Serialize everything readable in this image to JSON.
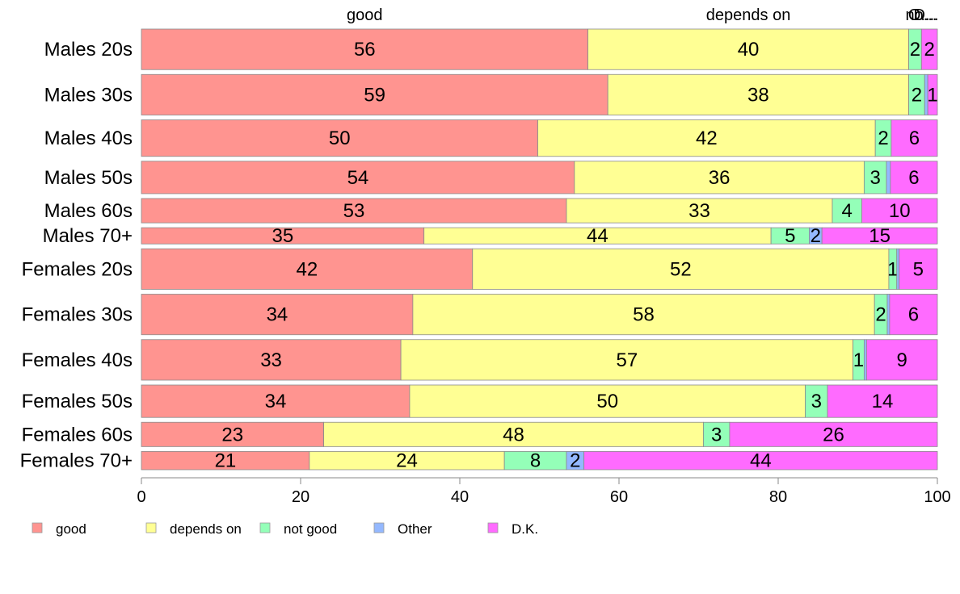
{
  "chart_data": {
    "type": "bar",
    "orientation": "horizontal",
    "stacked": true,
    "title": "",
    "xlabel": "",
    "ylabel": "",
    "xlim": [
      0,
      100
    ],
    "xticks": [
      0,
      20,
      40,
      60,
      80,
      100
    ],
    "grid": false,
    "legend_position": "bottom-left",
    "top_category_labels": [
      "good",
      "depends on",
      "no...",
      "O...",
      "D..."
    ],
    "series": [
      {
        "name": "good",
        "color": "#FF9490"
      },
      {
        "name": "depends on",
        "color": "#FFFF94"
      },
      {
        "name": "not good",
        "color": "#94FFB8"
      },
      {
        "name": "Other",
        "color": "#94B8FF"
      },
      {
        "name": "D.K.",
        "color": "#FF6BFF"
      }
    ],
    "rows": [
      {
        "label": "Males 20s",
        "values": [
          56.1,
          40.3,
          1.6,
          0.0,
          2.0
        ],
        "labels": [
          "56",
          "40",
          "2",
          "",
          "2"
        ],
        "weight": 1.0
      },
      {
        "label": "Males 30s",
        "values": [
          58.6,
          37.8,
          2.0,
          0.4,
          1.2
        ],
        "labels": [
          "59",
          "38",
          "2",
          "",
          "1"
        ],
        "weight": 1.0
      },
      {
        "label": "Males 40s",
        "values": [
          49.8,
          42.4,
          2.0,
          0.0,
          5.8
        ],
        "labels": [
          "50",
          "42",
          "2",
          "",
          "6"
        ],
        "weight": 0.9
      },
      {
        "label": "Males 50s",
        "values": [
          54.4,
          36.4,
          2.8,
          0.5,
          5.9
        ],
        "labels": [
          "54",
          "36",
          "3",
          "",
          "6"
        ],
        "weight": 0.8
      },
      {
        "label": "Males 60s",
        "values": [
          53.4,
          33.4,
          3.7,
          0.0,
          9.5
        ],
        "labels": [
          "53",
          "33",
          "4",
          "",
          "10"
        ],
        "weight": 0.6
      },
      {
        "label": "Males 70+",
        "values": [
          35.5,
          43.6,
          4.8,
          1.6,
          14.5
        ],
        "labels": [
          "35",
          "44",
          "5",
          "2",
          "15"
        ],
        "weight": 0.4
      },
      {
        "label": "Females 20s",
        "values": [
          41.6,
          52.3,
          1.0,
          0.3,
          4.8
        ],
        "labels": [
          "42",
          "52",
          "1",
          "",
          "5"
        ],
        "weight": 1.0
      },
      {
        "label": "Females 30s",
        "values": [
          34.1,
          58.0,
          1.6,
          0.3,
          6.0
        ],
        "labels": [
          "34",
          "58",
          "2",
          "",
          "6"
        ],
        "weight": 1.0
      },
      {
        "label": "Females 40s",
        "values": [
          32.6,
          56.8,
          1.4,
          0.3,
          8.9
        ],
        "labels": [
          "33",
          "57",
          "1",
          "",
          "9"
        ],
        "weight": 1.0
      },
      {
        "label": "Females 50s",
        "values": [
          33.7,
          49.7,
          2.8,
          0.0,
          13.8
        ],
        "labels": [
          "34",
          "50",
          "3",
          "",
          "14"
        ],
        "weight": 0.8
      },
      {
        "label": "Females 60s",
        "values": [
          22.9,
          47.7,
          3.3,
          0.0,
          26.1
        ],
        "labels": [
          "23",
          "48",
          "3",
          "",
          "26"
        ],
        "weight": 0.6
      },
      {
        "label": "Females 70+",
        "values": [
          21.1,
          24.5,
          7.8,
          2.2,
          44.4
        ],
        "labels": [
          "21",
          "24",
          "8",
          "2",
          "44"
        ],
        "weight": 0.45
      }
    ]
  }
}
